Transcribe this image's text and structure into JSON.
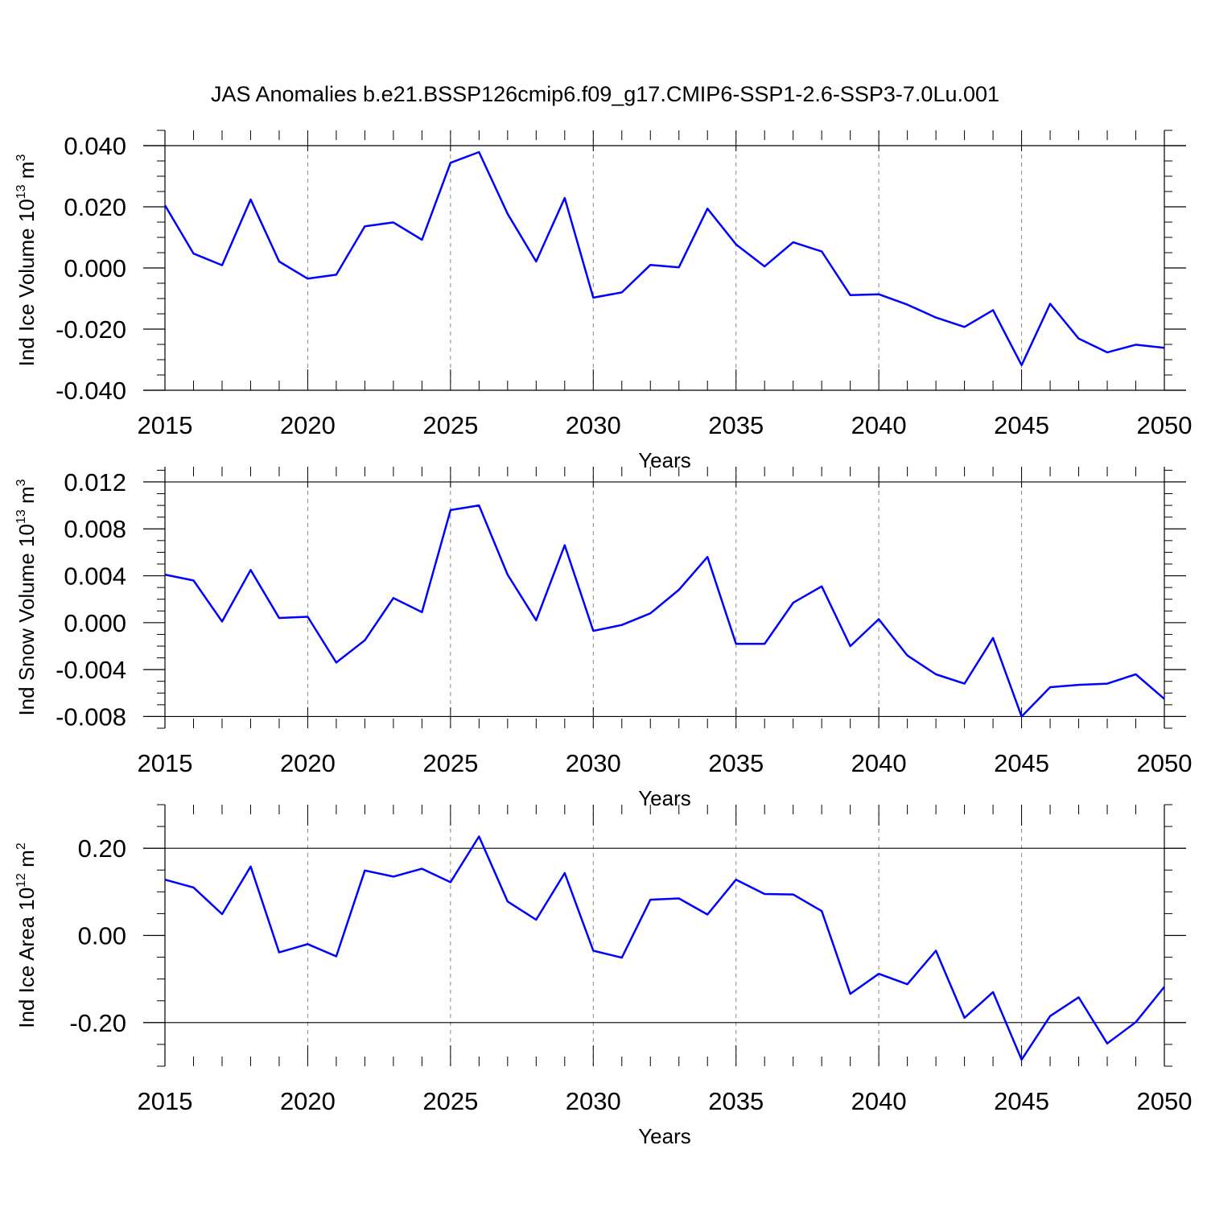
{
  "figure_title": "JAS Anomalies b.e21.BSSP126cmip6.f09_g17.CMIP6-SSP1-2.6-SSP3-7.0Lu.001",
  "line_color": "#0000ff",
  "chart_data": [
    {
      "type": "line",
      "xlabel": "Years",
      "ylabel_main": "Ind Ice Volume 10",
      "ylabel_exp": "13",
      "ylabel_unit": " m",
      "ylabel_unit_exp": "3",
      "xlim": [
        2015,
        2050
      ],
      "ylim": [
        -0.04,
        0.045
      ],
      "xticks": [
        2015,
        2020,
        2025,
        2030,
        2035,
        2040,
        2045,
        2050
      ],
      "xtick_labels": [
        "2015",
        "2020",
        "2025",
        "2030",
        "2035",
        "2040",
        "2045",
        "2050"
      ],
      "yticks": [
        0.04,
        0.02,
        0.0,
        -0.02,
        -0.04
      ],
      "ytick_labels": [
        "0.040",
        "0.020",
        "0.000",
        "-0.020",
        "-0.040"
      ],
      "yminor_step": 0.005,
      "x": [
        2015,
        2016,
        2017,
        2018,
        2019,
        2020,
        2021,
        2022,
        2023,
        2024,
        2025,
        2026,
        2027,
        2028,
        2029,
        2030,
        2031,
        2032,
        2033,
        2034,
        2035,
        2036,
        2037,
        2038,
        2039,
        2040,
        2041,
        2042,
        2043,
        2044,
        2045,
        2046,
        2047,
        2048,
        2049,
        2050
      ],
      "values": [
        0.0205,
        0.0047,
        0.0009,
        0.0224,
        0.0021,
        -0.0035,
        -0.0022,
        0.0136,
        0.0149,
        0.0092,
        0.0344,
        0.0379,
        0.0177,
        0.0021,
        0.0229,
        -0.0097,
        -0.008,
        0.001,
        0.0002,
        0.0194,
        0.0077,
        0.0005,
        0.0084,
        0.0054,
        -0.0089,
        -0.0086,
        -0.012,
        -0.0162,
        -0.0193,
        -0.0138,
        -0.0318,
        -0.0117,
        -0.0231,
        -0.0276,
        -0.0251,
        -0.0261
      ]
    },
    {
      "type": "line",
      "xlabel": "Years",
      "ylabel_main": "Ind Snow Volume 10",
      "ylabel_exp": "13",
      "ylabel_unit": " m",
      "ylabel_unit_exp": "3",
      "xlim": [
        2015,
        2050
      ],
      "ylim": [
        -0.009,
        0.0133
      ],
      "xticks": [
        2015,
        2020,
        2025,
        2030,
        2035,
        2040,
        2045,
        2050
      ],
      "xtick_labels": [
        "2015",
        "2020",
        "2025",
        "2030",
        "2035",
        "2040",
        "2045",
        "2050"
      ],
      "yticks": [
        0.012,
        0.008,
        0.004,
        0.0,
        -0.004,
        -0.008
      ],
      "ytick_labels": [
        "0.012",
        "0.008",
        "0.004",
        "0.000",
        "-0.004",
        "-0.008"
      ],
      "yminor_step": 0.001,
      "x": [
        2015,
        2016,
        2017,
        2018,
        2019,
        2020,
        2021,
        2022,
        2023,
        2024,
        2025,
        2026,
        2027,
        2028,
        2029,
        2030,
        2031,
        2032,
        2033,
        2034,
        2035,
        2036,
        2037,
        2038,
        2039,
        2040,
        2041,
        2042,
        2043,
        2044,
        2045,
        2046,
        2047,
        2048,
        2049,
        2050
      ],
      "values": [
        0.0041,
        0.0036,
        0.0001,
        0.0045,
        0.0004,
        0.0005,
        -0.0034,
        -0.0015,
        0.0021,
        0.0009,
        0.0096,
        0.01,
        0.0041,
        0.0002,
        0.0066,
        -0.0007,
        -0.0002,
        0.0008,
        0.0028,
        0.0056,
        -0.0018,
        -0.0018,
        0.0017,
        0.0031,
        -0.002,
        0.0003,
        -0.0028,
        -0.0044,
        -0.0052,
        -0.0013,
        -0.008,
        -0.0055,
        -0.0053,
        -0.0052,
        -0.0044,
        -0.0065
      ]
    },
    {
      "type": "line",
      "xlabel": "Years",
      "ylabel_main": "Ind Ice Area 10",
      "ylabel_exp": "12",
      "ylabel_unit": " m",
      "ylabel_unit_exp": "2",
      "xlim": [
        2015,
        2050
      ],
      "ylim": [
        -0.3,
        0.3
      ],
      "xticks": [
        2015,
        2020,
        2025,
        2030,
        2035,
        2040,
        2045,
        2050
      ],
      "xtick_labels": [
        "2015",
        "2020",
        "2025",
        "2030",
        "2035",
        "2040",
        "2045",
        "2050"
      ],
      "yticks": [
        0.2,
        0.0,
        -0.2
      ],
      "ytick_labels": [
        "0.20",
        "0.00",
        "-0.20"
      ],
      "yminor_step": 0.05,
      "x": [
        2015,
        2016,
        2017,
        2018,
        2019,
        2020,
        2021,
        2022,
        2023,
        2024,
        2025,
        2026,
        2027,
        2028,
        2029,
        2030,
        2031,
        2032,
        2033,
        2034,
        2035,
        2036,
        2037,
        2038,
        2039,
        2040,
        2041,
        2042,
        2043,
        2044,
        2045,
        2046,
        2047,
        2048,
        2049,
        2050
      ],
      "values": [
        0.128,
        0.11,
        0.049,
        0.158,
        -0.039,
        -0.02,
        -0.048,
        0.149,
        0.135,
        0.153,
        0.122,
        0.227,
        0.078,
        0.036,
        0.143,
        -0.035,
        -0.051,
        0.082,
        0.085,
        0.048,
        0.128,
        0.095,
        0.094,
        0.056,
        -0.134,
        -0.088,
        -0.112,
        -0.035,
        -0.189,
        -0.13,
        -0.285,
        -0.185,
        -0.142,
        -0.248,
        -0.199,
        -0.118
      ]
    }
  ]
}
